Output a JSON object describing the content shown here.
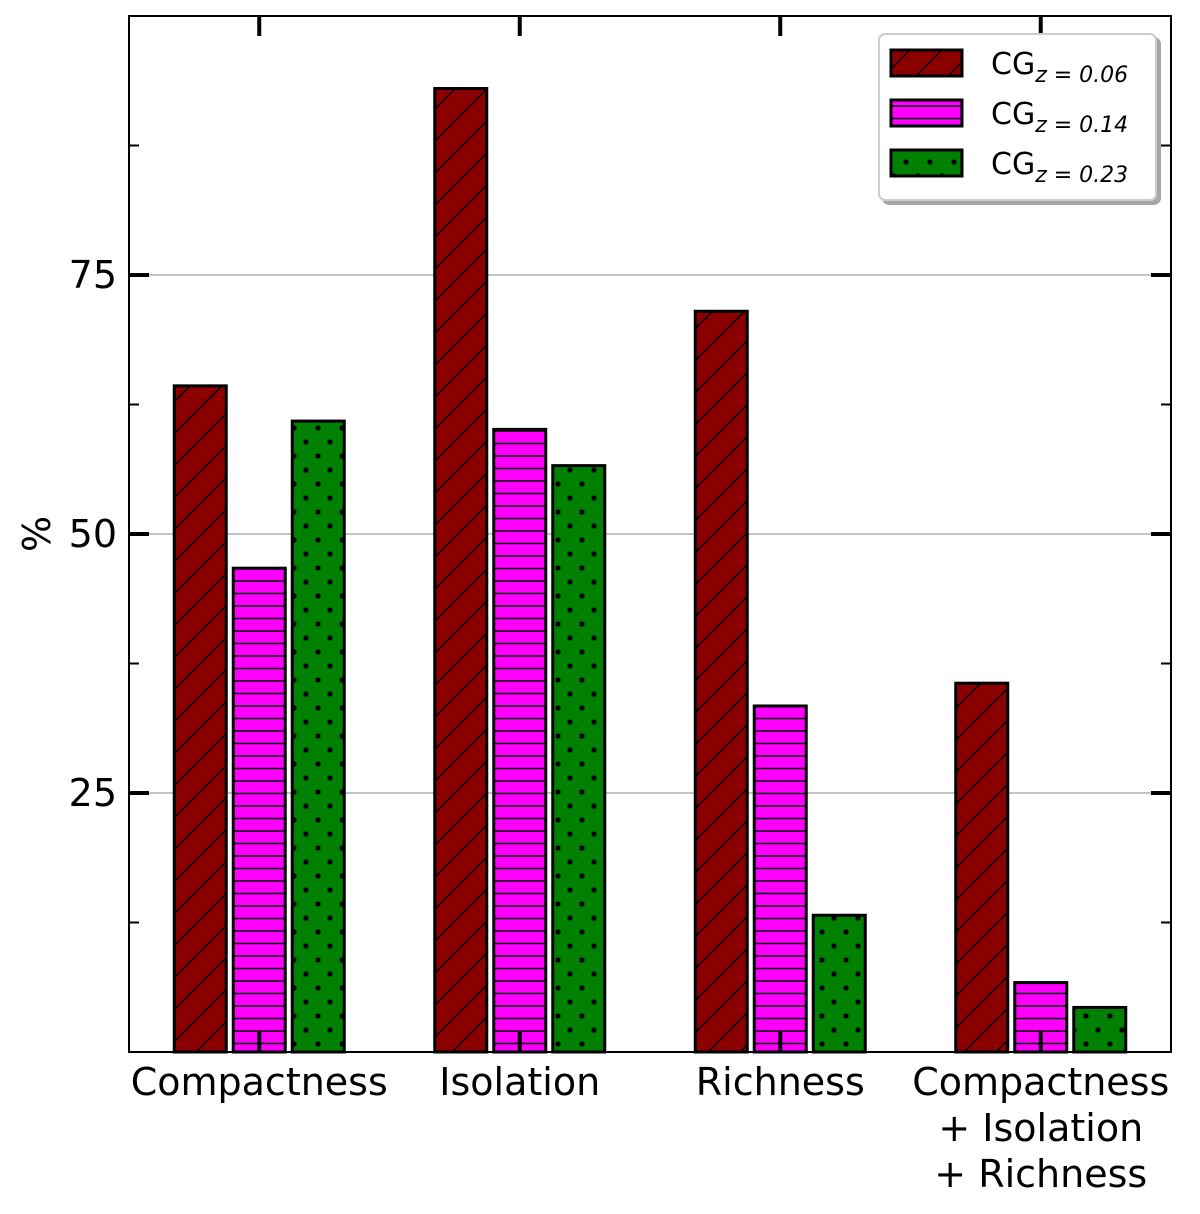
{
  "chart_data": {
    "type": "bar",
    "title": "",
    "xlabel": "",
    "ylabel": "%",
    "ylim": [
      0,
      100
    ],
    "yticks_labeled": [
      25,
      50,
      75
    ],
    "yticks_minor": [
      12.5,
      37.5,
      62.5,
      87.5
    ],
    "grid": "y",
    "legend_position": "top-right",
    "categories": [
      [
        "Compactness"
      ],
      [
        "Isolation"
      ],
      [
        "Richness"
      ],
      [
        "Compactness",
        "+ Isolation",
        "+ Richness"
      ]
    ],
    "series": [
      {
        "name": "CG",
        "subscript": "z = 0.06",
        "color": "#8b0000",
        "pattern": "diagonal",
        "values": [
          64.3,
          93.0,
          71.5,
          35.6
        ]
      },
      {
        "name": "CG",
        "subscript": "z = 0.14",
        "color": "#ff00ff",
        "pattern": "horizontal",
        "values": [
          46.7,
          60.1,
          33.4,
          6.7
        ]
      },
      {
        "name": "CG",
        "subscript": "z = 0.23",
        "color": "#008000",
        "pattern": "dots",
        "values": [
          60.9,
          56.6,
          13.2,
          4.3
        ]
      }
    ]
  }
}
